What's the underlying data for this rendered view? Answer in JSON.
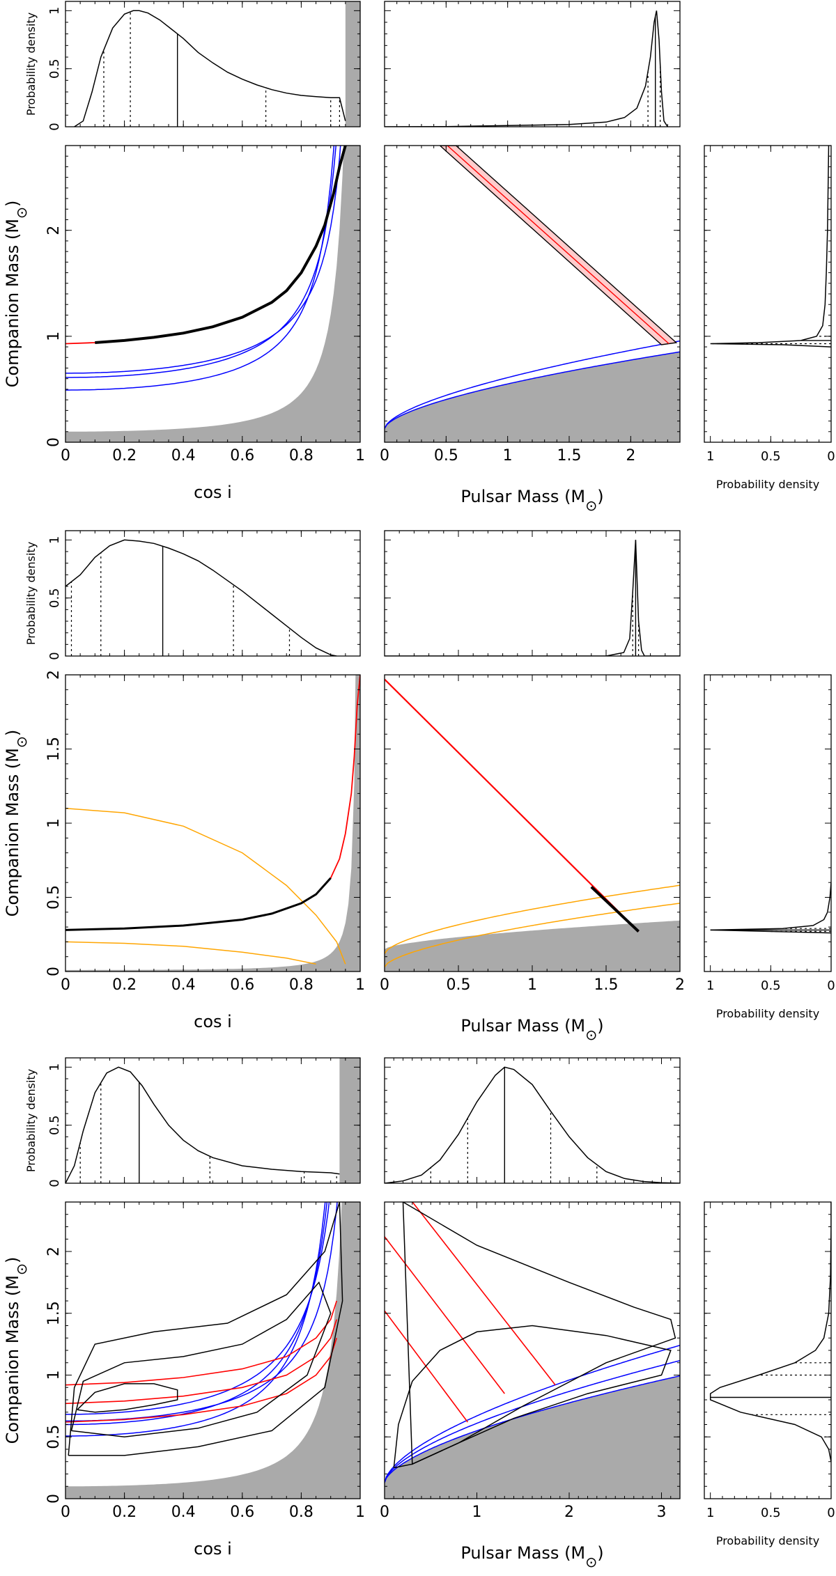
{
  "colors": {
    "shade": "#aaaaaa",
    "red": "#ff0000",
    "blue": "#0000ff",
    "orange": "#ffa500",
    "black": "#000000"
  },
  "labels": {
    "probability_density": "Probability density",
    "companion_mass": "Companion Mass (M",
    "cos_i": "cos i",
    "pulsar_mass": "Pulsar Mass (M",
    "sun_close": ")"
  },
  "chart_data": [
    {
      "id": "row1",
      "type": "line",
      "cos_pdf": {
        "ylim": [
          0,
          1
        ],
        "yticks": [
          0,
          0.5,
          1
        ],
        "xlim": [
          0,
          1
        ],
        "x": [
          0.03,
          0.06,
          0.09,
          0.12,
          0.16,
          0.2,
          0.23,
          0.25,
          0.28,
          0.32,
          0.36,
          0.4,
          0.45,
          0.5,
          0.55,
          0.6,
          0.65,
          0.7,
          0.75,
          0.8,
          0.85,
          0.9,
          0.93,
          0.95
        ],
        "y": [
          0,
          0.05,
          0.3,
          0.6,
          0.85,
          0.97,
          1.0,
          1.0,
          0.98,
          0.92,
          0.84,
          0.76,
          0.64,
          0.55,
          0.47,
          0.41,
          0.36,
          0.32,
          0.29,
          0.27,
          0.26,
          0.25,
          0.25,
          0.05
        ],
        "median": 0.38,
        "quantiles": [
          0.13,
          0.22,
          0.68,
          0.9,
          0.93
        ],
        "shade_from": 0.95
      },
      "mp_pdf": {
        "ylim": [
          0,
          1
        ],
        "xlim": [
          0,
          2.4
        ],
        "x": [
          0,
          0.5,
          1.0,
          1.5,
          1.8,
          1.95,
          2.05,
          2.12,
          2.16,
          2.19,
          2.21,
          2.23,
          2.25,
          2.27,
          2.3
        ],
        "y": [
          0,
          0.002,
          0.01,
          0.02,
          0.04,
          0.08,
          0.16,
          0.35,
          0.6,
          0.9,
          1.0,
          0.75,
          0.3,
          0.05,
          0
        ],
        "median": 2.2,
        "quantiles": [
          2.14,
          2.24
        ]
      },
      "main_cos": {
        "xlim": [
          0,
          1
        ],
        "ylim": [
          0,
          2.8
        ],
        "xticks": [
          0,
          0.2,
          0.4,
          0.6,
          0.8,
          1
        ],
        "yticks": [
          0,
          1,
          2
        ],
        "shade_mp": 0.0,
        "blue_mp": [
          1.7,
          0.9,
          0.4
        ],
        "red_x": [
          0,
          0.1,
          0.2,
          0.3,
          0.4,
          0.5,
          0.6,
          0.7,
          0.75,
          0.8,
          0.85,
          0.88,
          0.91,
          0.93,
          0.95
        ],
        "red_y": [
          0.93,
          0.94,
          0.96,
          0.99,
          1.03,
          1.09,
          1.18,
          1.32,
          1.43,
          1.6,
          1.85,
          2.05,
          2.35,
          2.6,
          2.8
        ]
      },
      "main_mp": {
        "xlim": [
          0,
          2.4
        ],
        "ylim": [
          0,
          2.8
        ],
        "xticks": [
          0,
          0.5,
          1,
          1.5,
          2
        ],
        "yticks": [
          0,
          1,
          2
        ],
        "band_start": [
          0.5,
          2.8
        ],
        "band_end": [
          2.25,
          0.92
        ],
        "blue_sini": [
          0.9,
          1.0
        ]
      },
      "mc_pdf": {
        "ylim": [
          0,
          2.8
        ],
        "xticks": [
          1,
          0.5,
          0
        ],
        "y": [
          0.9,
          0.92,
          0.93,
          0.94,
          0.96,
          1.0,
          1.1,
          1.3,
          1.6,
          2.0,
          2.8
        ],
        "d": [
          0,
          0.4,
          1.0,
          0.6,
          0.25,
          0.12,
          0.07,
          0.05,
          0.04,
          0.03,
          0.02
        ],
        "median": 0.96,
        "quantiles": [
          0.93,
          1.0
        ]
      }
    },
    {
      "id": "row2",
      "type": "line",
      "cos_pdf": {
        "ylim": [
          0,
          1
        ],
        "yticks": [
          0,
          0.5,
          1
        ],
        "xlim": [
          0,
          1
        ],
        "x": [
          0,
          0.05,
          0.1,
          0.15,
          0.2,
          0.25,
          0.3,
          0.35,
          0.4,
          0.45,
          0.5,
          0.55,
          0.6,
          0.65,
          0.7,
          0.75,
          0.8,
          0.85,
          0.9,
          0.92
        ],
        "y": [
          0.6,
          0.7,
          0.85,
          0.95,
          1.0,
          0.99,
          0.97,
          0.93,
          0.88,
          0.82,
          0.74,
          0.65,
          0.56,
          0.46,
          0.36,
          0.26,
          0.16,
          0.07,
          0.01,
          0
        ],
        "median": 0.33,
        "quantiles": [
          0.02,
          0.12,
          0.57,
          0.76
        ]
      },
      "mp_pdf": {
        "ylim": [
          0,
          1
        ],
        "xlim": [
          0,
          2.0
        ],
        "x": [
          0,
          1.5,
          1.62,
          1.66,
          1.68,
          1.7,
          1.72,
          1.74,
          1.76,
          2.0
        ],
        "y": [
          0,
          0,
          0.03,
          0.15,
          0.55,
          1.0,
          0.3,
          0.05,
          0,
          0
        ],
        "median": 1.7,
        "quantiles": [
          1.68,
          1.72
        ]
      },
      "main_cos": {
        "xlim": [
          0,
          1
        ],
        "ylim": [
          0,
          2
        ],
        "xticks": [
          0,
          0.2,
          0.4,
          0.6,
          0.8,
          1
        ],
        "yticks": [
          0,
          0.5,
          1,
          1.5,
          2
        ],
        "shade_mp": 0.0,
        "orange": [
          [
            0,
            1.1
          ],
          [
            0.2,
            1.07
          ],
          [
            0.4,
            0.98
          ],
          [
            0.6,
            0.8
          ],
          [
            0.75,
            0.58
          ],
          [
            0.85,
            0.38
          ],
          [
            0.92,
            0.2
          ],
          [
            0.95,
            0.05
          ]
        ],
        "orange2": [
          [
            0,
            0.2
          ],
          [
            0.2,
            0.19
          ],
          [
            0.4,
            0.17
          ],
          [
            0.6,
            0.13
          ],
          [
            0.75,
            0.09
          ],
          [
            0.85,
            0.05
          ]
        ],
        "red_x": [
          0,
          0.2,
          0.4,
          0.6,
          0.7,
          0.8,
          0.85,
          0.9,
          0.93,
          0.95,
          0.97,
          0.98,
          0.99,
          1.0
        ],
        "red_y": [
          0.28,
          0.29,
          0.31,
          0.35,
          0.39,
          0.46,
          0.52,
          0.63,
          0.76,
          0.93,
          1.2,
          1.45,
          1.8,
          2.0
        ],
        "black_end": 0.9
      },
      "main_mp": {
        "xlim": [
          0,
          2
        ],
        "ylim": [
          0,
          2
        ],
        "xticks": [
          0,
          0.5,
          1,
          1.5,
          2
        ],
        "yticks": [
          0,
          0.5,
          1,
          1.5,
          2
        ],
        "red_start": [
          0,
          1.97
        ],
        "red_end": [
          1.72,
          0.27
        ],
        "black_start": [
          1.4,
          0.57
        ],
        "orange_sini": [
          0.95,
          0.999
        ]
      },
      "mc_pdf": {
        "ylim": [
          0,
          2
        ],
        "xticks": [
          1,
          0.5,
          0
        ],
        "y": [
          0.26,
          0.27,
          0.28,
          0.29,
          0.31,
          0.35,
          0.4,
          0.5,
          0.6
        ],
        "d": [
          0,
          0.5,
          1.0,
          0.4,
          0.15,
          0.06,
          0.03,
          0.01,
          0
        ],
        "median": 0.28,
        "quantiles": [
          0.27,
          0.29
        ]
      }
    },
    {
      "id": "row3",
      "type": "line",
      "cos_pdf": {
        "ylim": [
          0,
          1
        ],
        "yticks": [
          0,
          0.5,
          1
        ],
        "xlim": [
          0,
          1
        ],
        "x": [
          0,
          0.03,
          0.06,
          0.1,
          0.14,
          0.18,
          0.22,
          0.26,
          0.3,
          0.35,
          0.4,
          0.45,
          0.5,
          0.6,
          0.7,
          0.8,
          0.9,
          0.93
        ],
        "y": [
          0,
          0.15,
          0.45,
          0.78,
          0.95,
          1.0,
          0.96,
          0.84,
          0.68,
          0.5,
          0.37,
          0.28,
          0.22,
          0.15,
          0.12,
          0.1,
          0.09,
          0.08
        ],
        "median": 0.25,
        "quantiles": [
          0.05,
          0.12,
          0.49,
          0.81,
          0.92
        ],
        "shade_from": 0.93
      },
      "mp_pdf": {
        "ylim": [
          0,
          1
        ],
        "xlim": [
          0,
          3.2
        ],
        "x": [
          0,
          0.2,
          0.4,
          0.6,
          0.8,
          1.0,
          1.2,
          1.3,
          1.4,
          1.6,
          1.8,
          2.0,
          2.2,
          2.4,
          2.6,
          2.8,
          3.0,
          3.2
        ],
        "y": [
          0,
          0.02,
          0.07,
          0.2,
          0.42,
          0.7,
          0.93,
          1.0,
          0.98,
          0.85,
          0.62,
          0.4,
          0.22,
          0.1,
          0.04,
          0.015,
          0.005,
          0
        ],
        "median": 1.3,
        "quantiles": [
          0.5,
          0.9,
          1.8,
          2.3
        ]
      },
      "main_cos": {
        "xlim": [
          0,
          1
        ],
        "ylim": [
          0,
          2.4
        ],
        "xticks": [
          0,
          0.2,
          0.4,
          0.6,
          0.8,
          1
        ],
        "yticks": [
          0,
          0.5,
          1,
          1.5,
          2
        ],
        "shade_mp": 0.0,
        "blue_mp": [
          1.6,
          1.1,
          0.6,
          0.3
        ],
        "red_x": [
          0,
          0.2,
          0.4,
          0.6,
          0.75,
          0.85,
          0.9,
          0.92
        ],
        "red_y0": [
          0.62,
          0.64,
          0.68,
          0.75,
          0.85,
          1.0,
          1.15,
          1.3
        ],
        "red_offsets": [
          0,
          0.15,
          0.3
        ],
        "contours": [
          [
            [
              0.04,
              0.72
            ],
            [
              0.1,
              0.86
            ],
            [
              0.2,
              0.93
            ],
            [
              0.3,
              0.93
            ],
            [
              0.38,
              0.88
            ],
            [
              0.38,
              0.8
            ],
            [
              0.3,
              0.76
            ],
            [
              0.2,
              0.72
            ],
            [
              0.1,
              0.7
            ],
            [
              0.04,
              0.72
            ]
          ],
          [
            [
              0.02,
              0.55
            ],
            [
              0.06,
              0.95
            ],
            [
              0.2,
              1.1
            ],
            [
              0.4,
              1.15
            ],
            [
              0.6,
              1.25
            ],
            [
              0.75,
              1.45
            ],
            [
              0.86,
              1.75
            ],
            [
              0.9,
              1.5
            ],
            [
              0.82,
              1.0
            ],
            [
              0.65,
              0.7
            ],
            [
              0.45,
              0.57
            ],
            [
              0.2,
              0.5
            ],
            [
              0.02,
              0.55
            ]
          ],
          [
            [
              0.01,
              0.35
            ],
            [
              0.03,
              0.9
            ],
            [
              0.1,
              1.25
            ],
            [
              0.3,
              1.35
            ],
            [
              0.55,
              1.42
            ],
            [
              0.75,
              1.65
            ],
            [
              0.88,
              2.0
            ],
            [
              0.93,
              2.4
            ],
            [
              0.94,
              1.6
            ],
            [
              0.88,
              0.9
            ],
            [
              0.7,
              0.55
            ],
            [
              0.45,
              0.42
            ],
            [
              0.2,
              0.35
            ],
            [
              0.01,
              0.35
            ]
          ]
        ]
      },
      "main_mp": {
        "xlim": [
          0,
          3.2
        ],
        "ylim": [
          0,
          2.4
        ],
        "xticks": [
          0,
          1,
          2,
          3
        ],
        "yticks": [
          0,
          0.5,
          1,
          1.5,
          2
        ],
        "red_lines": [
          [
            [
              0,
              1.52
            ],
            [
              0.9,
              0.62
            ]
          ],
          [
            [
              0,
              2.12
            ],
            [
              1.3,
              0.85
            ]
          ],
          [
            [
              0.25,
              2.45
            ],
            [
              1.85,
              0.92
            ]
          ]
        ],
        "blue_sini": [
          0.95,
          0.99,
          0.999
        ],
        "contours": [
          [
            [
              0.1,
              0.25
            ],
            [
              0.15,
              0.6
            ],
            [
              0.3,
              0.95
            ],
            [
              0.6,
              1.2
            ],
            [
              1.0,
              1.35
            ],
            [
              1.6,
              1.4
            ],
            [
              2.4,
              1.32
            ],
            [
              3.1,
              1.2
            ],
            [
              3.0,
              1.0
            ],
            [
              2.2,
              0.85
            ],
            [
              1.4,
              0.65
            ],
            [
              0.8,
              0.45
            ],
            [
              0.3,
              0.28
            ],
            [
              0.1,
              0.25
            ]
          ],
          [
            [
              0.2,
              2.4
            ],
            [
              1.0,
              2.05
            ],
            [
              2.0,
              1.75
            ],
            [
              2.7,
              1.55
            ],
            [
              3.1,
              1.45
            ],
            [
              3.15,
              1.3
            ],
            [
              2.4,
              1.1
            ],
            [
              1.5,
              0.75
            ],
            [
              0.8,
              0.45
            ],
            [
              0.3,
              0.28
            ],
            [
              0.2,
              2.4
            ]
          ]
        ]
      },
      "mc_pdf": {
        "ylim": [
          0,
          2.4
        ],
        "xticks": [
          1,
          0.5,
          0
        ],
        "y": [
          0.3,
          0.4,
          0.5,
          0.6,
          0.7,
          0.8,
          0.85,
          0.9,
          1.0,
          1.1,
          1.2,
          1.3,
          1.5,
          1.8,
          2.2,
          2.4
        ],
        "d": [
          0,
          0.02,
          0.08,
          0.3,
          0.75,
          1.0,
          1.0,
          0.92,
          0.6,
          0.3,
          0.13,
          0.06,
          0.02,
          0.005,
          0,
          0
        ],
        "median": 0.82,
        "quantiles": [
          0.5,
          0.68,
          1.0,
          1.1
        ]
      }
    }
  ]
}
